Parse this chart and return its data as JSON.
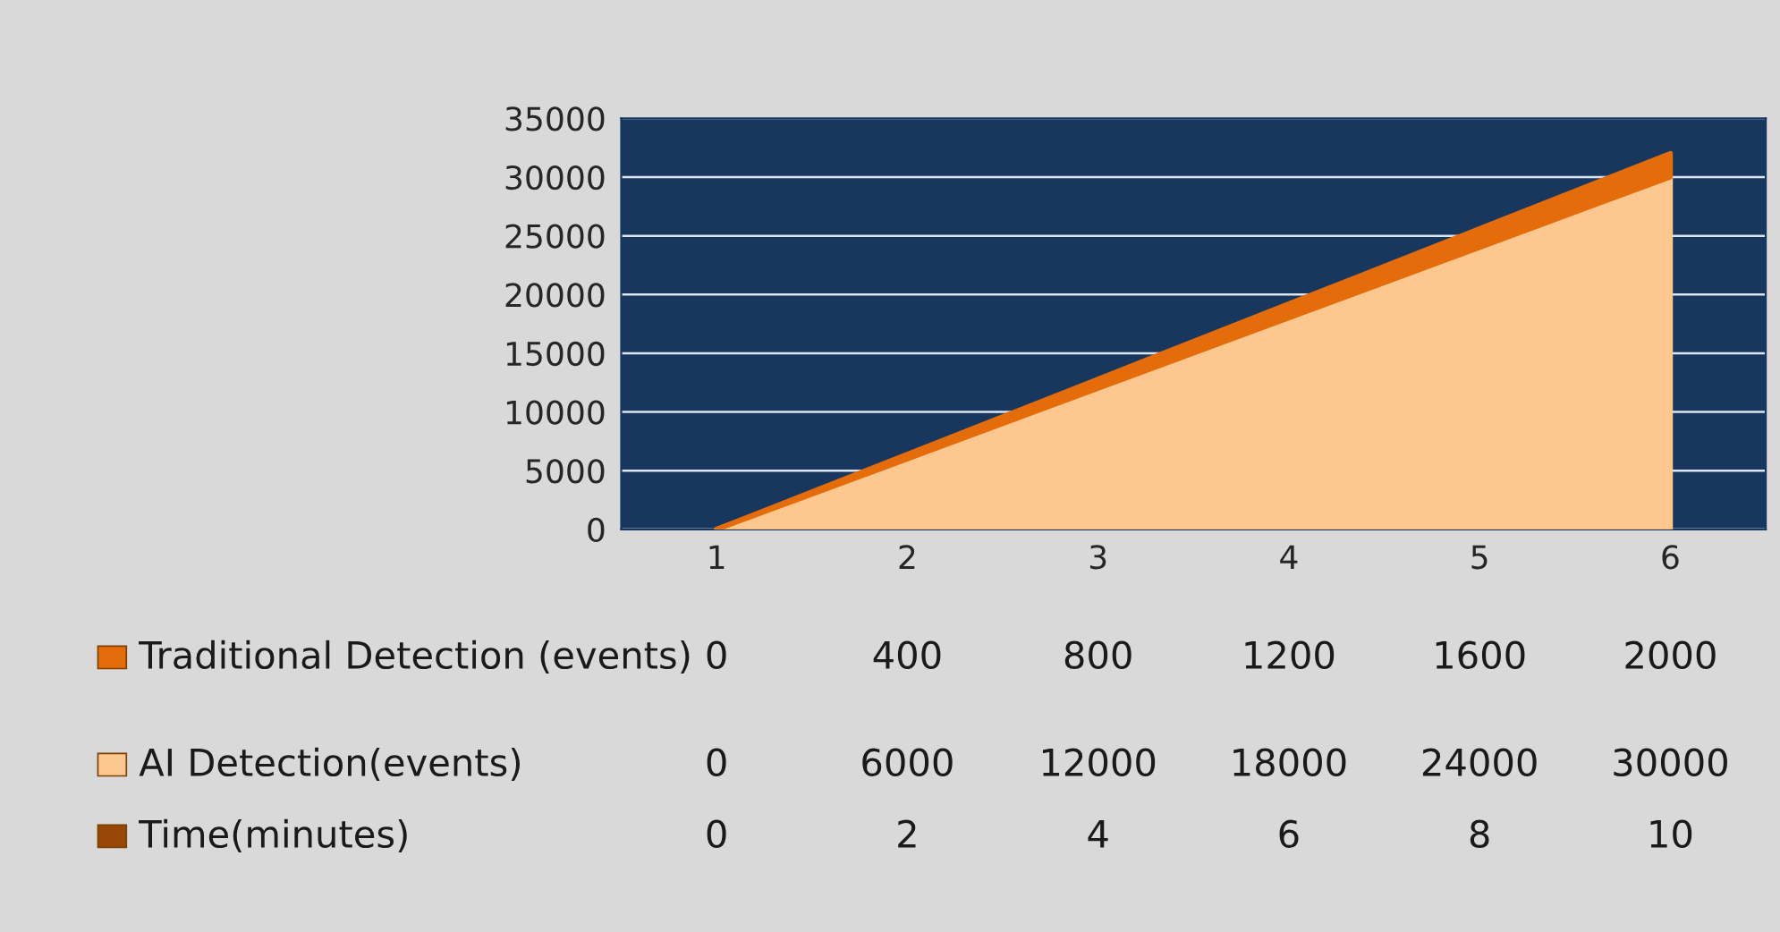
{
  "chart_data": {
    "type": "area",
    "stacked": true,
    "categories": [
      "1",
      "2",
      "3",
      "4",
      "5",
      "6"
    ],
    "series": [
      {
        "name": "Time(minutes)",
        "color": "#974806",
        "values": [
          0,
          2,
          4,
          6,
          8,
          10
        ]
      },
      {
        "name": "AI Detection(events)",
        "color": "#fcc890",
        "values": [
          0,
          6000,
          12000,
          18000,
          24000,
          30000
        ]
      },
      {
        "name": "Traditional Detection (events)",
        "color": "#e46c0a",
        "values": [
          0,
          400,
          800,
          1200,
          1600,
          2000
        ]
      }
    ],
    "ylim": [
      0,
      35000
    ],
    "yticks": [
      0,
      5000,
      10000,
      15000,
      20000,
      25000,
      30000,
      35000
    ],
    "grid": "y",
    "data_labels": true,
    "legend": "bottom left"
  }
}
